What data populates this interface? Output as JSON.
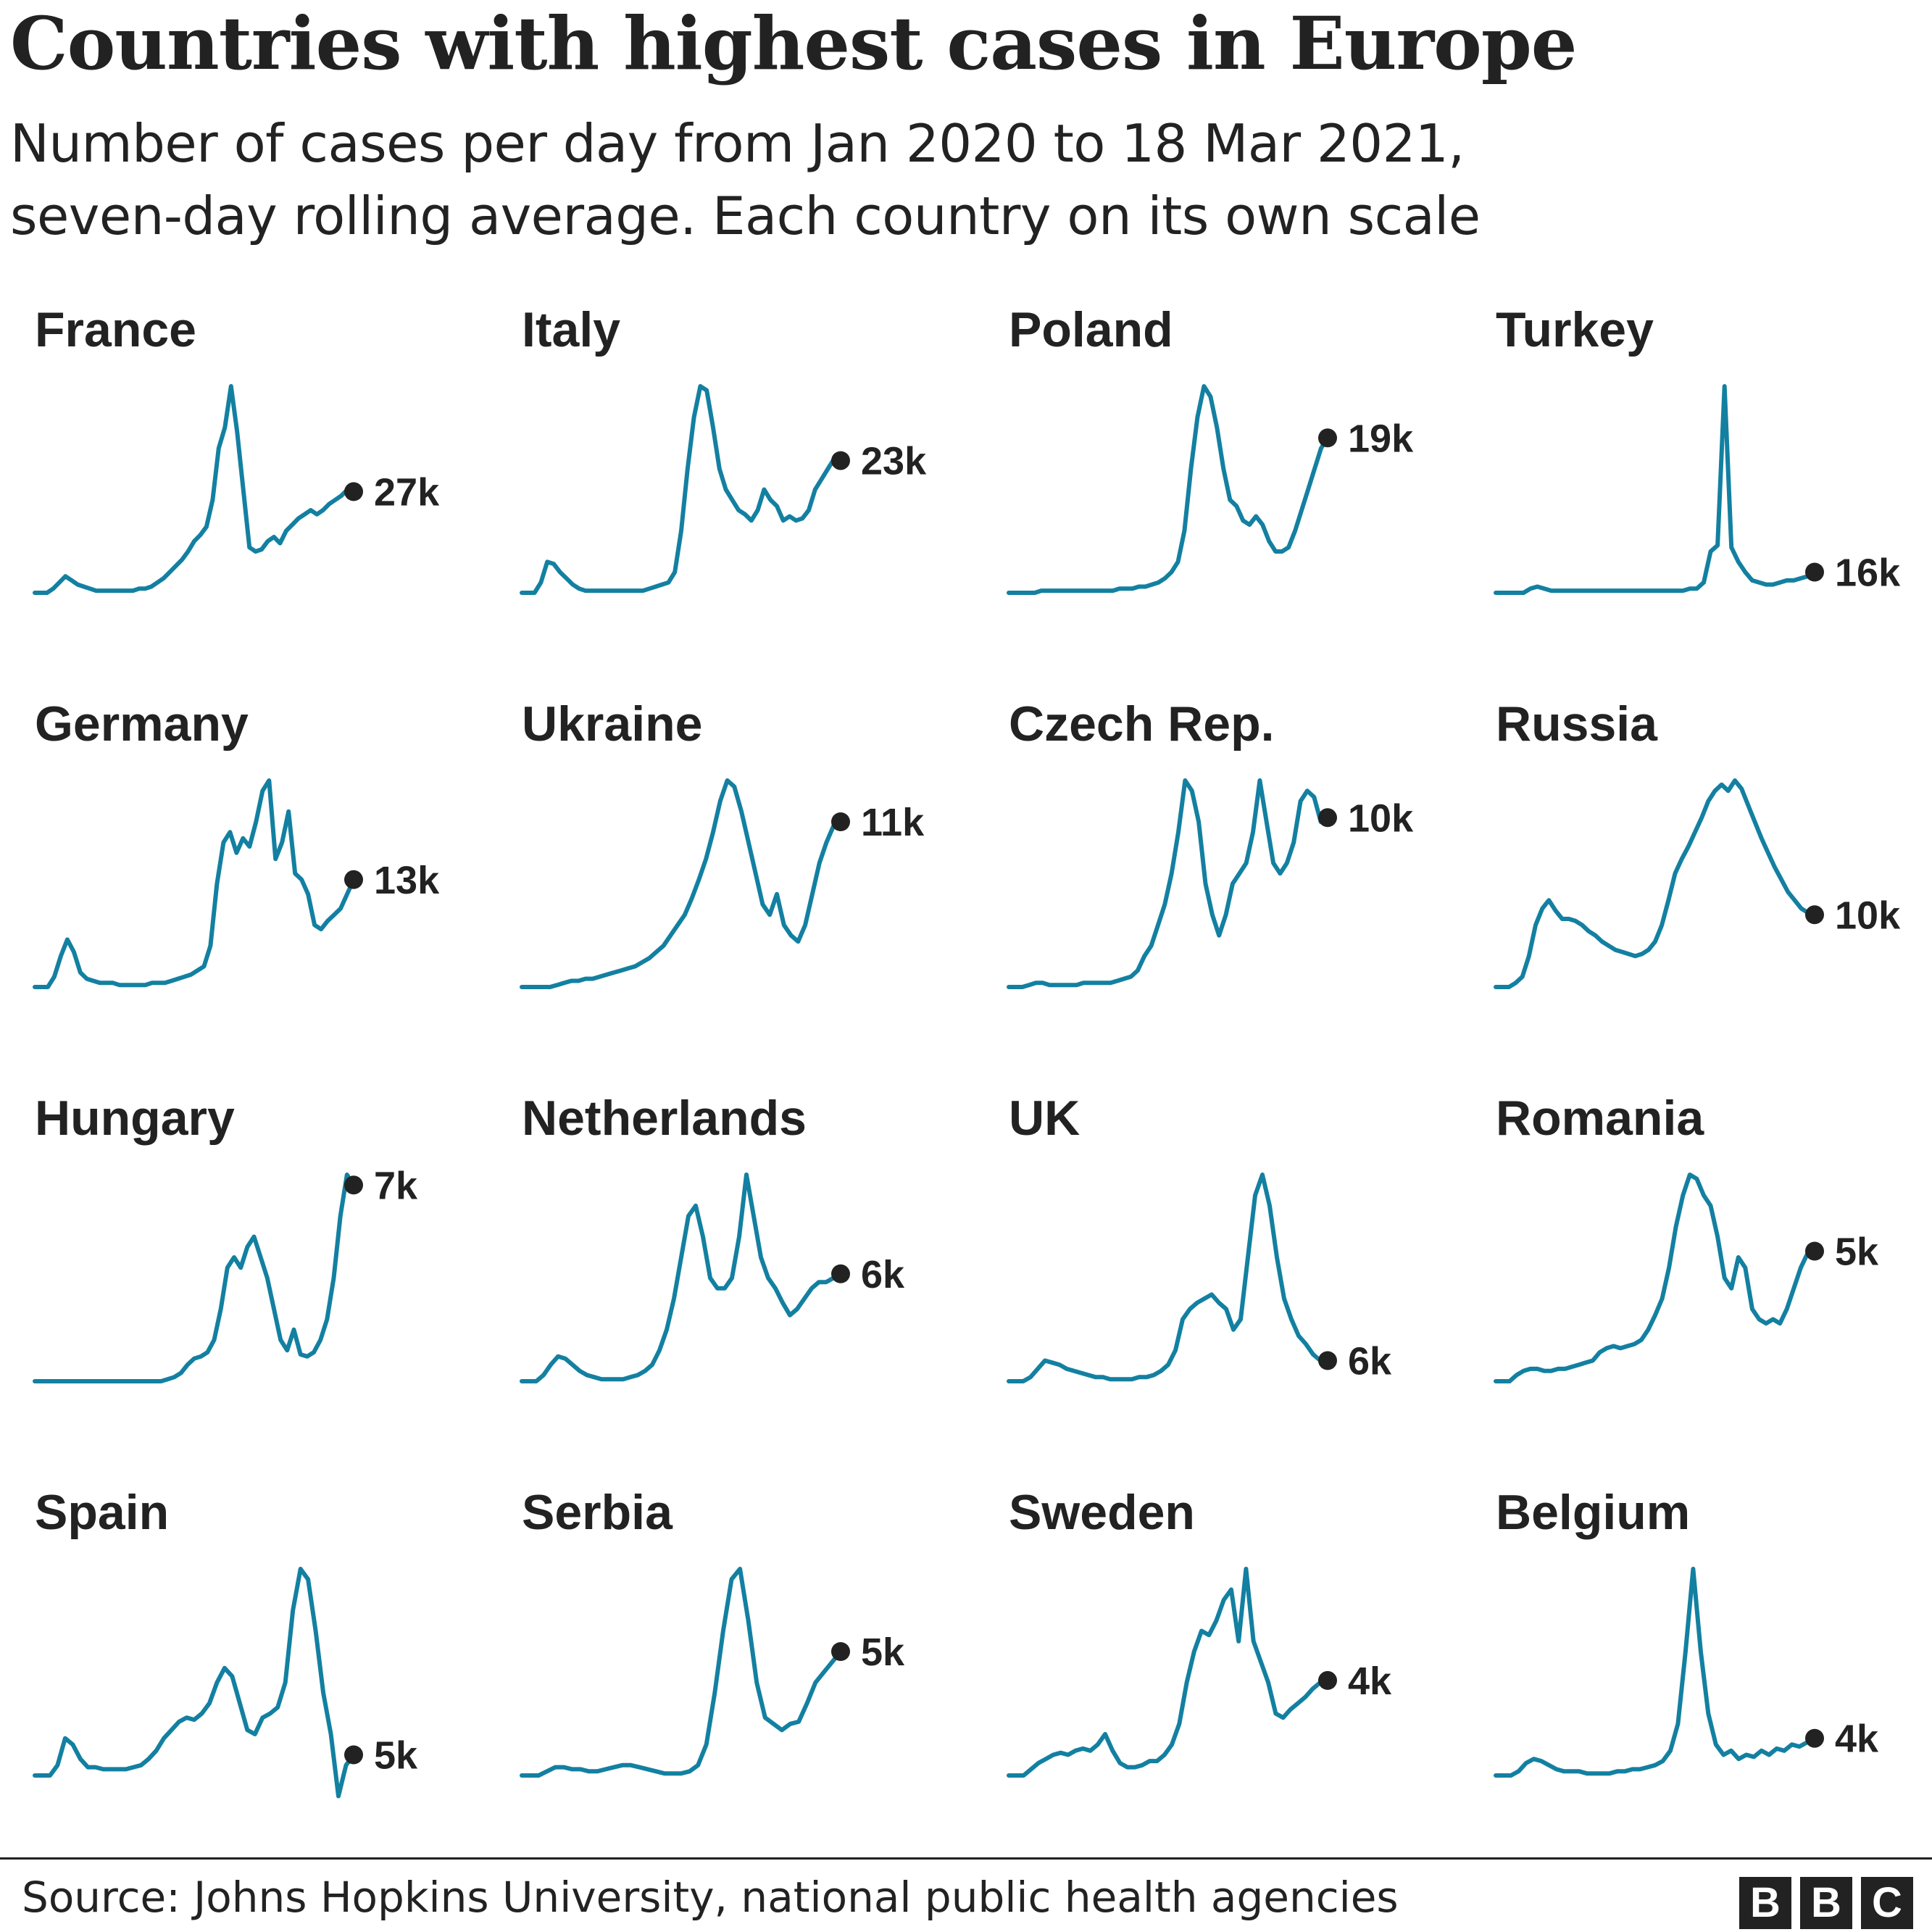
{
  "title": "Countries with highest cases in Europe",
  "subtitle": {
    "line1": "Number of cases per day from Jan 2020 to 18 Mar 2021,",
    "line2": "seven-day rolling average. Each country on its own scale"
  },
  "source": "Source: Johns Hopkins University, national public health agencies",
  "logo": [
    "B",
    "B",
    "C"
  ],
  "colors": {
    "line": "#1380a1",
    "text": "#222222",
    "dot": "#222222",
    "background": "#ffffff"
  },
  "chart_data": {
    "type": "line",
    "title": "Countries with highest cases in Europe",
    "note": "small multiples, each country on its own scale",
    "x_range": [
      "Jan 2020",
      "18 Mar 2021"
    ],
    "grid": false,
    "y_scale": "independent per panel",
    "countries": [
      {
        "name": "France",
        "latest_label": "27k",
        "latest": 27000,
        "series": [
          0,
          0,
          0,
          0.02,
          0.05,
          0.08,
          0.06,
          0.04,
          0.03,
          0.02,
          0.01,
          0.01,
          0.01,
          0.01,
          0.01,
          0.01,
          0.01,
          0.02,
          0.02,
          0.03,
          0.05,
          0.07,
          0.1,
          0.13,
          0.16,
          0.2,
          0.25,
          0.28,
          0.32,
          0.45,
          0.7,
          0.8,
          1.0,
          0.78,
          0.5,
          0.22,
          0.2,
          0.21,
          0.25,
          0.27,
          0.24,
          0.3,
          0.33,
          0.36,
          0.38,
          0.4,
          0.38,
          0.4,
          0.43,
          0.45,
          0.47,
          0.5,
          0.49
        ]
      },
      {
        "name": "Italy",
        "latest_label": "23k",
        "latest": 23000,
        "series": [
          0,
          0,
          0,
          0.05,
          0.15,
          0.14,
          0.1,
          0.07,
          0.04,
          0.02,
          0.01,
          0.01,
          0.01,
          0.01,
          0.01,
          0.01,
          0.01,
          0.01,
          0.01,
          0.01,
          0.02,
          0.03,
          0.04,
          0.05,
          0.1,
          0.3,
          0.6,
          0.85,
          1.0,
          0.98,
          0.8,
          0.6,
          0.5,
          0.45,
          0.4,
          0.38,
          0.35,
          0.4,
          0.5,
          0.45,
          0.42,
          0.35,
          0.37,
          0.35,
          0.36,
          0.4,
          0.5,
          0.55,
          0.6,
          0.65,
          0.64
        ]
      },
      {
        "name": "Poland",
        "latest_label": "19k",
        "latest": 19000,
        "series": [
          0,
          0,
          0,
          0,
          0,
          0.01,
          0.01,
          0.01,
          0.01,
          0.01,
          0.01,
          0.01,
          0.01,
          0.01,
          0.01,
          0.01,
          0.01,
          0.02,
          0.02,
          0.02,
          0.03,
          0.03,
          0.04,
          0.05,
          0.07,
          0.1,
          0.15,
          0.3,
          0.6,
          0.85,
          1.0,
          0.95,
          0.8,
          0.6,
          0.45,
          0.42,
          0.35,
          0.33,
          0.37,
          0.33,
          0.25,
          0.2,
          0.2,
          0.22,
          0.3,
          0.4,
          0.5,
          0.6,
          0.7,
          0.75
        ]
      },
      {
        "name": "Turkey",
        "latest_label": "16k",
        "latest": 16000,
        "series": [
          0,
          0,
          0,
          0,
          0,
          0.02,
          0.03,
          0.02,
          0.01,
          0.01,
          0.01,
          0.01,
          0.01,
          0.01,
          0.01,
          0.01,
          0.01,
          0.01,
          0.01,
          0.01,
          0.01,
          0.01,
          0.01,
          0.01,
          0.01,
          0.01,
          0.01,
          0.01,
          0.02,
          0.02,
          0.05,
          0.2,
          0.23,
          1.0,
          0.22,
          0.15,
          0.1,
          0.06,
          0.05,
          0.04,
          0.04,
          0.05,
          0.06,
          0.06,
          0.07,
          0.08,
          0.1
        ]
      },
      {
        "name": "Germany",
        "latest_label": "13k",
        "latest": 13000,
        "series": [
          0,
          0,
          0,
          0.05,
          0.15,
          0.23,
          0.17,
          0.07,
          0.04,
          0.03,
          0.02,
          0.02,
          0.02,
          0.01,
          0.01,
          0.01,
          0.01,
          0.01,
          0.02,
          0.02,
          0.02,
          0.03,
          0.04,
          0.05,
          0.06,
          0.08,
          0.1,
          0.2,
          0.5,
          0.7,
          0.75,
          0.65,
          0.72,
          0.68,
          0.8,
          0.95,
          1.0,
          0.62,
          0.7,
          0.85,
          0.55,
          0.52,
          0.45,
          0.3,
          0.28,
          0.32,
          0.35,
          0.38,
          0.45,
          0.52
        ]
      },
      {
        "name": "Ukraine",
        "latest_label": "11k",
        "latest": 11000,
        "series": [
          0,
          0,
          0,
          0,
          0,
          0.01,
          0.02,
          0.03,
          0.03,
          0.04,
          0.04,
          0.05,
          0.06,
          0.07,
          0.08,
          0.09,
          0.1,
          0.12,
          0.14,
          0.17,
          0.2,
          0.25,
          0.3,
          0.35,
          0.43,
          0.52,
          0.62,
          0.75,
          0.9,
          1.0,
          0.97,
          0.85,
          0.7,
          0.55,
          0.4,
          0.35,
          0.45,
          0.3,
          0.25,
          0.22,
          0.3,
          0.45,
          0.6,
          0.7,
          0.78,
          0.8
        ]
      },
      {
        "name": "Czech Rep.",
        "latest_label": "10k",
        "latest": 10000,
        "series": [
          0,
          0,
          0,
          0.01,
          0.02,
          0.02,
          0.01,
          0.01,
          0.01,
          0.01,
          0.01,
          0.02,
          0.02,
          0.02,
          0.02,
          0.02,
          0.03,
          0.04,
          0.05,
          0.08,
          0.15,
          0.2,
          0.3,
          0.4,
          0.55,
          0.75,
          1.0,
          0.95,
          0.8,
          0.5,
          0.35,
          0.25,
          0.35,
          0.5,
          0.55,
          0.6,
          0.75,
          1.0,
          0.8,
          0.6,
          0.55,
          0.6,
          0.7,
          0.9,
          0.95,
          0.92,
          0.8,
          0.82
        ]
      },
      {
        "name": "Russia",
        "latest_label": "10k",
        "latest": 10000,
        "series": [
          0,
          0,
          0,
          0.02,
          0.05,
          0.15,
          0.3,
          0.38,
          0.42,
          0.37,
          0.33,
          0.33,
          0.32,
          0.3,
          0.27,
          0.25,
          0.22,
          0.2,
          0.18,
          0.17,
          0.16,
          0.15,
          0.16,
          0.18,
          0.22,
          0.3,
          0.42,
          0.55,
          0.62,
          0.68,
          0.75,
          0.82,
          0.9,
          0.95,
          0.98,
          0.95,
          1.0,
          0.96,
          0.88,
          0.8,
          0.72,
          0.65,
          0.58,
          0.52,
          0.46,
          0.42,
          0.38,
          0.36,
          0.35
        ]
      },
      {
        "name": "Hungary",
        "latest_label": "7k",
        "latest": 7000,
        "series": [
          0,
          0,
          0,
          0,
          0,
          0,
          0,
          0,
          0,
          0,
          0,
          0,
          0,
          0,
          0,
          0,
          0,
          0,
          0,
          0,
          0.01,
          0.02,
          0.04,
          0.08,
          0.11,
          0.12,
          0.14,
          0.2,
          0.35,
          0.55,
          0.6,
          0.55,
          0.65,
          0.7,
          0.6,
          0.5,
          0.35,
          0.2,
          0.15,
          0.25,
          0.13,
          0.12,
          0.14,
          0.2,
          0.3,
          0.5,
          0.8,
          1.0,
          0.95
        ]
      },
      {
        "name": "Netherlands",
        "latest_label": "6k",
        "latest": 6000,
        "series": [
          0,
          0,
          0,
          0.03,
          0.08,
          0.12,
          0.11,
          0.08,
          0.05,
          0.03,
          0.02,
          0.01,
          0.01,
          0.01,
          0.01,
          0.02,
          0.03,
          0.05,
          0.08,
          0.15,
          0.25,
          0.4,
          0.6,
          0.8,
          0.85,
          0.7,
          0.5,
          0.45,
          0.45,
          0.5,
          0.7,
          1.0,
          0.8,
          0.6,
          0.5,
          0.45,
          0.38,
          0.32,
          0.35,
          0.4,
          0.45,
          0.48,
          0.48,
          0.5,
          0.52
        ]
      },
      {
        "name": "UK",
        "latest_label": "6k",
        "latest": 6000,
        "series": [
          0,
          0,
          0,
          0.02,
          0.06,
          0.1,
          0.09,
          0.08,
          0.06,
          0.05,
          0.04,
          0.03,
          0.02,
          0.02,
          0.01,
          0.01,
          0.01,
          0.01,
          0.02,
          0.02,
          0.03,
          0.05,
          0.08,
          0.15,
          0.3,
          0.35,
          0.38,
          0.4,
          0.42,
          0.38,
          0.35,
          0.25,
          0.3,
          0.6,
          0.9,
          1.0,
          0.85,
          0.6,
          0.4,
          0.3,
          0.22,
          0.18,
          0.13,
          0.1,
          0.1
        ]
      },
      {
        "name": "Romania",
        "latest_label": "5k",
        "latest": 5000,
        "series": [
          0,
          0,
          0,
          0.03,
          0.05,
          0.06,
          0.06,
          0.05,
          0.05,
          0.06,
          0.06,
          0.07,
          0.08,
          0.09,
          0.1,
          0.14,
          0.16,
          0.17,
          0.16,
          0.17,
          0.18,
          0.2,
          0.25,
          0.32,
          0.4,
          0.55,
          0.75,
          0.9,
          1.0,
          0.98,
          0.9,
          0.85,
          0.7,
          0.5,
          0.45,
          0.6,
          0.55,
          0.35,
          0.3,
          0.28,
          0.3,
          0.28,
          0.35,
          0.45,
          0.55,
          0.62,
          0.63
        ]
      },
      {
        "name": "Spain",
        "latest_label": "5k",
        "latest": 5000,
        "series": [
          0,
          0,
          0,
          0.05,
          0.18,
          0.15,
          0.08,
          0.04,
          0.04,
          0.03,
          0.03,
          0.03,
          0.03,
          0.04,
          0.05,
          0.08,
          0.12,
          0.18,
          0.22,
          0.26,
          0.28,
          0.27,
          0.3,
          0.35,
          0.45,
          0.52,
          0.48,
          0.35,
          0.22,
          0.2,
          0.28,
          0.3,
          0.33,
          0.45,
          0.8,
          1.0,
          0.95,
          0.7,
          0.4,
          0.2,
          -0.1,
          0.05,
          0.1
        ]
      },
      {
        "name": "Serbia",
        "latest_label": "5k",
        "latest": 5000,
        "series": [
          0,
          0,
          0,
          0.02,
          0.04,
          0.04,
          0.03,
          0.03,
          0.02,
          0.02,
          0.03,
          0.04,
          0.05,
          0.05,
          0.04,
          0.03,
          0.02,
          0.01,
          0.01,
          0.01,
          0.02,
          0.05,
          0.15,
          0.4,
          0.7,
          0.95,
          1.0,
          0.75,
          0.45,
          0.28,
          0.25,
          0.22,
          0.25,
          0.26,
          0.35,
          0.45,
          0.5,
          0.55,
          0.6
        ]
      },
      {
        "name": "Sweden",
        "latest_label": "4k",
        "latest": 4000,
        "series": [
          0,
          0,
          0,
          0.03,
          0.06,
          0.08,
          0.1,
          0.11,
          0.1,
          0.12,
          0.13,
          0.12,
          0.15,
          0.2,
          0.12,
          0.06,
          0.04,
          0.04,
          0.05,
          0.07,
          0.07,
          0.1,
          0.15,
          0.25,
          0.45,
          0.6,
          0.7,
          0.68,
          0.75,
          0.85,
          0.9,
          0.65,
          1.0,
          0.65,
          0.55,
          0.45,
          0.3,
          0.28,
          0.32,
          0.35,
          0.38,
          0.42,
          0.45,
          0.46
        ]
      },
      {
        "name": "Belgium",
        "latest_label": "4k",
        "latest": 4000,
        "series": [
          0,
          0,
          0,
          0.02,
          0.06,
          0.08,
          0.07,
          0.05,
          0.03,
          0.02,
          0.02,
          0.02,
          0.01,
          0.01,
          0.01,
          0.01,
          0.02,
          0.02,
          0.03,
          0.03,
          0.04,
          0.05,
          0.07,
          0.12,
          0.25,
          0.6,
          1.0,
          0.6,
          0.3,
          0.15,
          0.1,
          0.12,
          0.08,
          0.1,
          0.09,
          0.12,
          0.1,
          0.13,
          0.12,
          0.15,
          0.14,
          0.16,
          0.18
        ]
      }
    ]
  }
}
